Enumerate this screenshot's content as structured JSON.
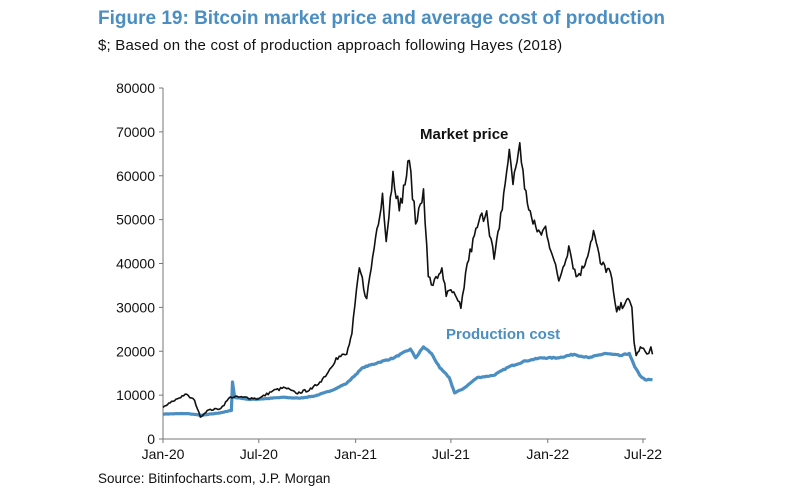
{
  "header": {
    "title": "Figure 19: Bitcoin market price and average cost of production",
    "subtitle": "$; Based on the cost of production approach following Hayes (2018)"
  },
  "footer": {
    "source": "Source: Bitinfocharts.com, J.P. Morgan"
  },
  "chart_data": {
    "type": "line",
    "ylim": [
      0,
      80000
    ],
    "yticks": [
      0,
      10000,
      20000,
      30000,
      40000,
      50000,
      60000,
      70000,
      80000
    ],
    "xlim": [
      "2020-01-01",
      "2022-07-20"
    ],
    "xticks": [
      {
        "date": "2020-01-01",
        "label": "Jan-20"
      },
      {
        "date": "2020-07-01",
        "label": "Jul-20"
      },
      {
        "date": "2021-01-01",
        "label": "Jan-21"
      },
      {
        "date": "2021-07-01",
        "label": "Jul-21"
      },
      {
        "date": "2022-01-01",
        "label": "Jan-22"
      },
      {
        "date": "2022-07-01",
        "label": "Jul-22"
      }
    ],
    "grid": false,
    "colors": {
      "market": "#111111",
      "production": "#4a8ec2"
    },
    "series": [
      {
        "name": "Market price",
        "color": "#111111",
        "points": [
          [
            "2020-01-01",
            7200
          ],
          [
            "2020-01-20",
            8600
          ],
          [
            "2020-02-12",
            10200
          ],
          [
            "2020-03-01",
            8800
          ],
          [
            "2020-03-12",
            5000
          ],
          [
            "2020-03-25",
            6500
          ],
          [
            "2020-04-20",
            7000
          ],
          [
            "2020-05-08",
            9600
          ],
          [
            "2020-06-01",
            9500
          ],
          [
            "2020-07-01",
            9200
          ],
          [
            "2020-07-28",
            11000
          ],
          [
            "2020-08-20",
            11700
          ],
          [
            "2020-09-10",
            10400
          ],
          [
            "2020-10-10",
            11400
          ],
          [
            "2020-10-25",
            13000
          ],
          [
            "2020-11-10",
            15300
          ],
          [
            "2020-11-25",
            18500
          ],
          [
            "2020-12-15",
            19300
          ],
          [
            "2020-12-25",
            24000
          ],
          [
            "2021-01-08",
            39000
          ],
          [
            "2021-01-22",
            32000
          ],
          [
            "2021-02-08",
            46000
          ],
          [
            "2021-02-21",
            56000
          ],
          [
            "2021-02-28",
            45000
          ],
          [
            "2021-03-13",
            61000
          ],
          [
            "2021-03-25",
            52000
          ],
          [
            "2021-04-13",
            63500
          ],
          [
            "2021-04-25",
            49000
          ],
          [
            "2021-05-10",
            57000
          ],
          [
            "2021-05-19",
            37000
          ],
          [
            "2021-05-28",
            35000
          ],
          [
            "2021-06-14",
            39000
          ],
          [
            "2021-06-22",
            32500
          ],
          [
            "2021-07-01",
            34000
          ],
          [
            "2021-07-20",
            29800
          ],
          [
            "2021-08-01",
            40000
          ],
          [
            "2021-08-23",
            49500
          ],
          [
            "2021-09-07",
            52000
          ],
          [
            "2021-09-21",
            41000
          ],
          [
            "2021-10-01",
            48000
          ],
          [
            "2021-10-15",
            61000
          ],
          [
            "2021-10-20",
            66000
          ],
          [
            "2021-10-27",
            58000
          ],
          [
            "2021-11-09",
            67500
          ],
          [
            "2021-11-18",
            57000
          ],
          [
            "2021-12-04",
            49000
          ],
          [
            "2021-12-20",
            46500
          ],
          [
            "2021-12-28",
            48500
          ],
          [
            "2022-01-10",
            41800
          ],
          [
            "2022-01-22",
            36000
          ],
          [
            "2022-02-10",
            44000
          ],
          [
            "2022-02-24",
            37000
          ],
          [
            "2022-03-10",
            39000
          ],
          [
            "2022-03-29",
            47500
          ],
          [
            "2022-04-11",
            40000
          ],
          [
            "2022-04-30",
            38000
          ],
          [
            "2022-05-09",
            31000
          ],
          [
            "2022-05-12",
            29000
          ],
          [
            "2022-05-31",
            31800
          ],
          [
            "2022-06-10",
            30000
          ],
          [
            "2022-06-14",
            22000
          ],
          [
            "2022-06-18",
            19000
          ],
          [
            "2022-06-26",
            21000
          ],
          [
            "2022-07-05",
            20000
          ],
          [
            "2022-07-12",
            19500
          ],
          [
            "2022-07-16",
            21000
          ],
          [
            "2022-07-19",
            19300
          ]
        ]
      },
      {
        "name": "Production cost",
        "color": "#4a8ec2",
        "points": [
          [
            "2020-01-01",
            5700
          ],
          [
            "2020-02-15",
            5800
          ],
          [
            "2020-03-15",
            5400
          ],
          [
            "2020-04-20",
            6000
          ],
          [
            "2020-05-10",
            6500
          ],
          [
            "2020-05-12",
            13000
          ],
          [
            "2020-05-16",
            9500
          ],
          [
            "2020-06-15",
            9000
          ],
          [
            "2020-07-15",
            9200
          ],
          [
            "2020-08-15",
            9500
          ],
          [
            "2020-09-15",
            9300
          ],
          [
            "2020-10-15",
            9800
          ],
          [
            "2020-11-15",
            11000
          ],
          [
            "2020-12-15",
            12700
          ],
          [
            "2021-01-15",
            16300
          ],
          [
            "2021-02-15",
            17500
          ],
          [
            "2021-03-15",
            18500
          ],
          [
            "2021-04-15",
            20500
          ],
          [
            "2021-04-25",
            18500
          ],
          [
            "2021-05-10",
            21000
          ],
          [
            "2021-05-25",
            19500
          ],
          [
            "2021-06-10",
            16200
          ],
          [
            "2021-06-28",
            14000
          ],
          [
            "2021-07-08",
            10500
          ],
          [
            "2021-07-25",
            11500
          ],
          [
            "2021-08-20",
            14000
          ],
          [
            "2021-09-20",
            14500
          ],
          [
            "2021-10-20",
            16500
          ],
          [
            "2021-11-20",
            17800
          ],
          [
            "2021-12-20",
            18500
          ],
          [
            "2022-01-20",
            18500
          ],
          [
            "2022-02-20",
            19300
          ],
          [
            "2022-03-20",
            18500
          ],
          [
            "2022-04-20",
            19500
          ],
          [
            "2022-05-20",
            19000
          ],
          [
            "2022-06-05",
            19500
          ],
          [
            "2022-06-15",
            16500
          ],
          [
            "2022-06-25",
            14500
          ],
          [
            "2022-07-05",
            13500
          ],
          [
            "2022-07-19",
            13500
          ]
        ]
      }
    ],
    "annotations": [
      {
        "text": "Market price",
        "series": "Market price"
      },
      {
        "text": "Production cost",
        "series": "Production cost"
      }
    ]
  }
}
